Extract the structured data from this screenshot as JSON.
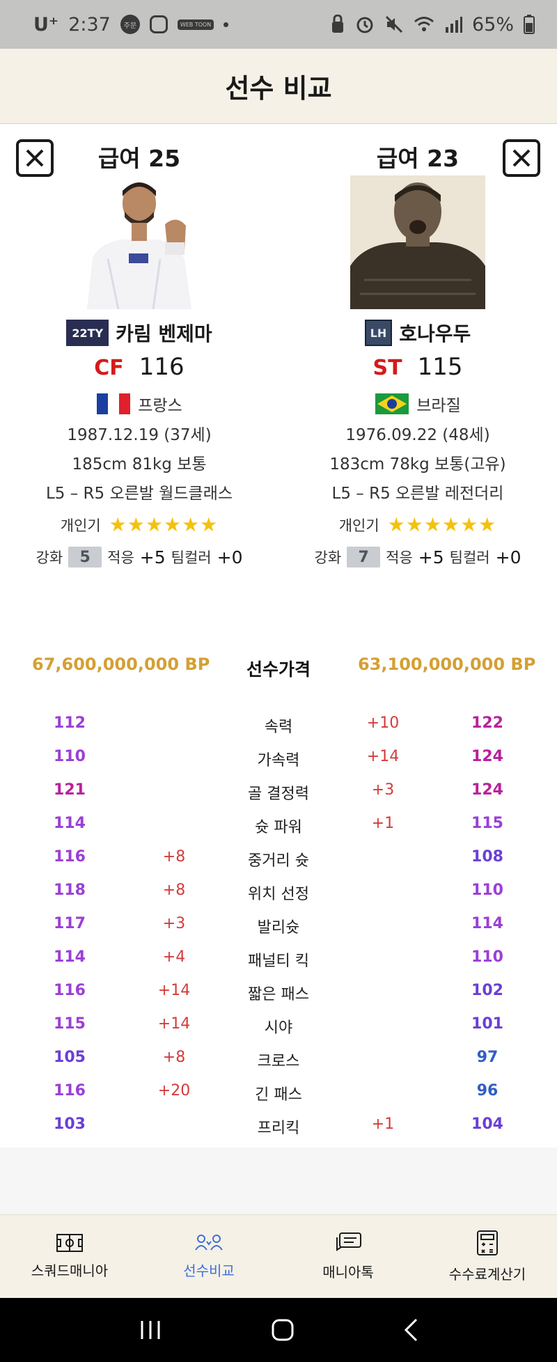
{
  "status_bar": {
    "carrier": "U⁺",
    "time": "2:37",
    "notif_badge": "주문",
    "webtoon": "WEB TOON",
    "battery": "65%"
  },
  "header": {
    "title": "선수 비교"
  },
  "players": [
    {
      "salary": "급여 25",
      "season": "22TY",
      "name": "카림 벤제마",
      "position": "CF",
      "ovr": "116",
      "nation": "프랑스",
      "dob": "1987.12.19 (37세)",
      "body": "185cm  81kg  보통",
      "foot": "L5 – R5  오른발  월드클래스",
      "pop_label": "개인기",
      "stars": "★★★★★★",
      "upg_label": "강화",
      "upg_level": "5",
      "adapt_label": "적응",
      "adapt_val": "+5",
      "tc_label": "팀컬러",
      "tc_val": "+0",
      "price": "67,600,000,000 BP"
    },
    {
      "salary": "급여 23",
      "season": "LH",
      "name": "호나우두",
      "position": "ST",
      "ovr": "115",
      "nation": "브라질",
      "dob": "1976.09.22 (48세)",
      "body": "183cm  78kg  보통(고유)",
      "foot": "L5 – R5  오른발  레전더리",
      "pop_label": "개인기",
      "stars": "★★★★★★",
      "upg_label": "강화",
      "upg_level": "7",
      "adapt_label": "적응",
      "adapt_val": "+5",
      "tc_label": "팀컬러",
      "tc_val": "+0",
      "price": "63,100,000,000 BP"
    }
  ],
  "price_label": "선수가격",
  "colors": {
    "accent_gold": "#d4a034",
    "bonus_red": "#d43b3b",
    "active_blue": "#3f6fd6",
    "purple": "#9b3fd6",
    "magenta": "#b8219e",
    "violet": "#6a3fd6",
    "blue": "#2f5fc6"
  },
  "stats": [
    {
      "name": "속력",
      "left": "112",
      "left_bonus": "",
      "right_bonus": "+10",
      "right": "122",
      "left_color": "#9b3fd6",
      "right_color": "#b8219e"
    },
    {
      "name": "가속력",
      "left": "110",
      "left_bonus": "",
      "right_bonus": "+14",
      "right": "124",
      "left_color": "#9b3fd6",
      "right_color": "#b8219e"
    },
    {
      "name": "골 결정력",
      "left": "121",
      "left_bonus": "",
      "right_bonus": "+3",
      "right": "124",
      "left_color": "#b8219e",
      "right_color": "#b8219e"
    },
    {
      "name": "슛 파워",
      "left": "114",
      "left_bonus": "",
      "right_bonus": "+1",
      "right": "115",
      "left_color": "#9b3fd6",
      "right_color": "#9b3fd6"
    },
    {
      "name": "중거리 슛",
      "left": "116",
      "left_bonus": "+8",
      "right_bonus": "",
      "right": "108",
      "left_color": "#9b3fd6",
      "right_color": "#6a3fd6"
    },
    {
      "name": "위치 선정",
      "left": "118",
      "left_bonus": "+8",
      "right_bonus": "",
      "right": "110",
      "left_color": "#9b3fd6",
      "right_color": "#9b3fd6"
    },
    {
      "name": "발리슛",
      "left": "117",
      "left_bonus": "+3",
      "right_bonus": "",
      "right": "114",
      "left_color": "#9b3fd6",
      "right_color": "#9b3fd6"
    },
    {
      "name": "패널티 킥",
      "left": "114",
      "left_bonus": "+4",
      "right_bonus": "",
      "right": "110",
      "left_color": "#9b3fd6",
      "right_color": "#9b3fd6"
    },
    {
      "name": "짧은 패스",
      "left": "116",
      "left_bonus": "+14",
      "right_bonus": "",
      "right": "102",
      "left_color": "#9b3fd6",
      "right_color": "#6a3fd6"
    },
    {
      "name": "시야",
      "left": "115",
      "left_bonus": "+14",
      "right_bonus": "",
      "right": "101",
      "left_color": "#9b3fd6",
      "right_color": "#6a3fd6"
    },
    {
      "name": "크로스",
      "left": "105",
      "left_bonus": "+8",
      "right_bonus": "",
      "right": "97",
      "left_color": "#6a3fd6",
      "right_color": "#2f5fc6"
    },
    {
      "name": "긴 패스",
      "left": "116",
      "left_bonus": "+20",
      "right_bonus": "",
      "right": "96",
      "left_color": "#9b3fd6",
      "right_color": "#2f5fc6"
    },
    {
      "name": "프리킥",
      "left": "103",
      "left_bonus": "",
      "right_bonus": "+1",
      "right": "104",
      "left_color": "#6a3fd6",
      "right_color": "#6a3fd6"
    }
  ],
  "bottom_nav": [
    {
      "label": "스쿼드매니아",
      "icon": "pitch-icon",
      "active": false
    },
    {
      "label": "선수비교",
      "icon": "compare-players-icon",
      "active": true
    },
    {
      "label": "매니아톡",
      "icon": "chat-icon",
      "active": false
    },
    {
      "label": "수수료계산기",
      "icon": "calculator-icon",
      "active": false
    }
  ]
}
